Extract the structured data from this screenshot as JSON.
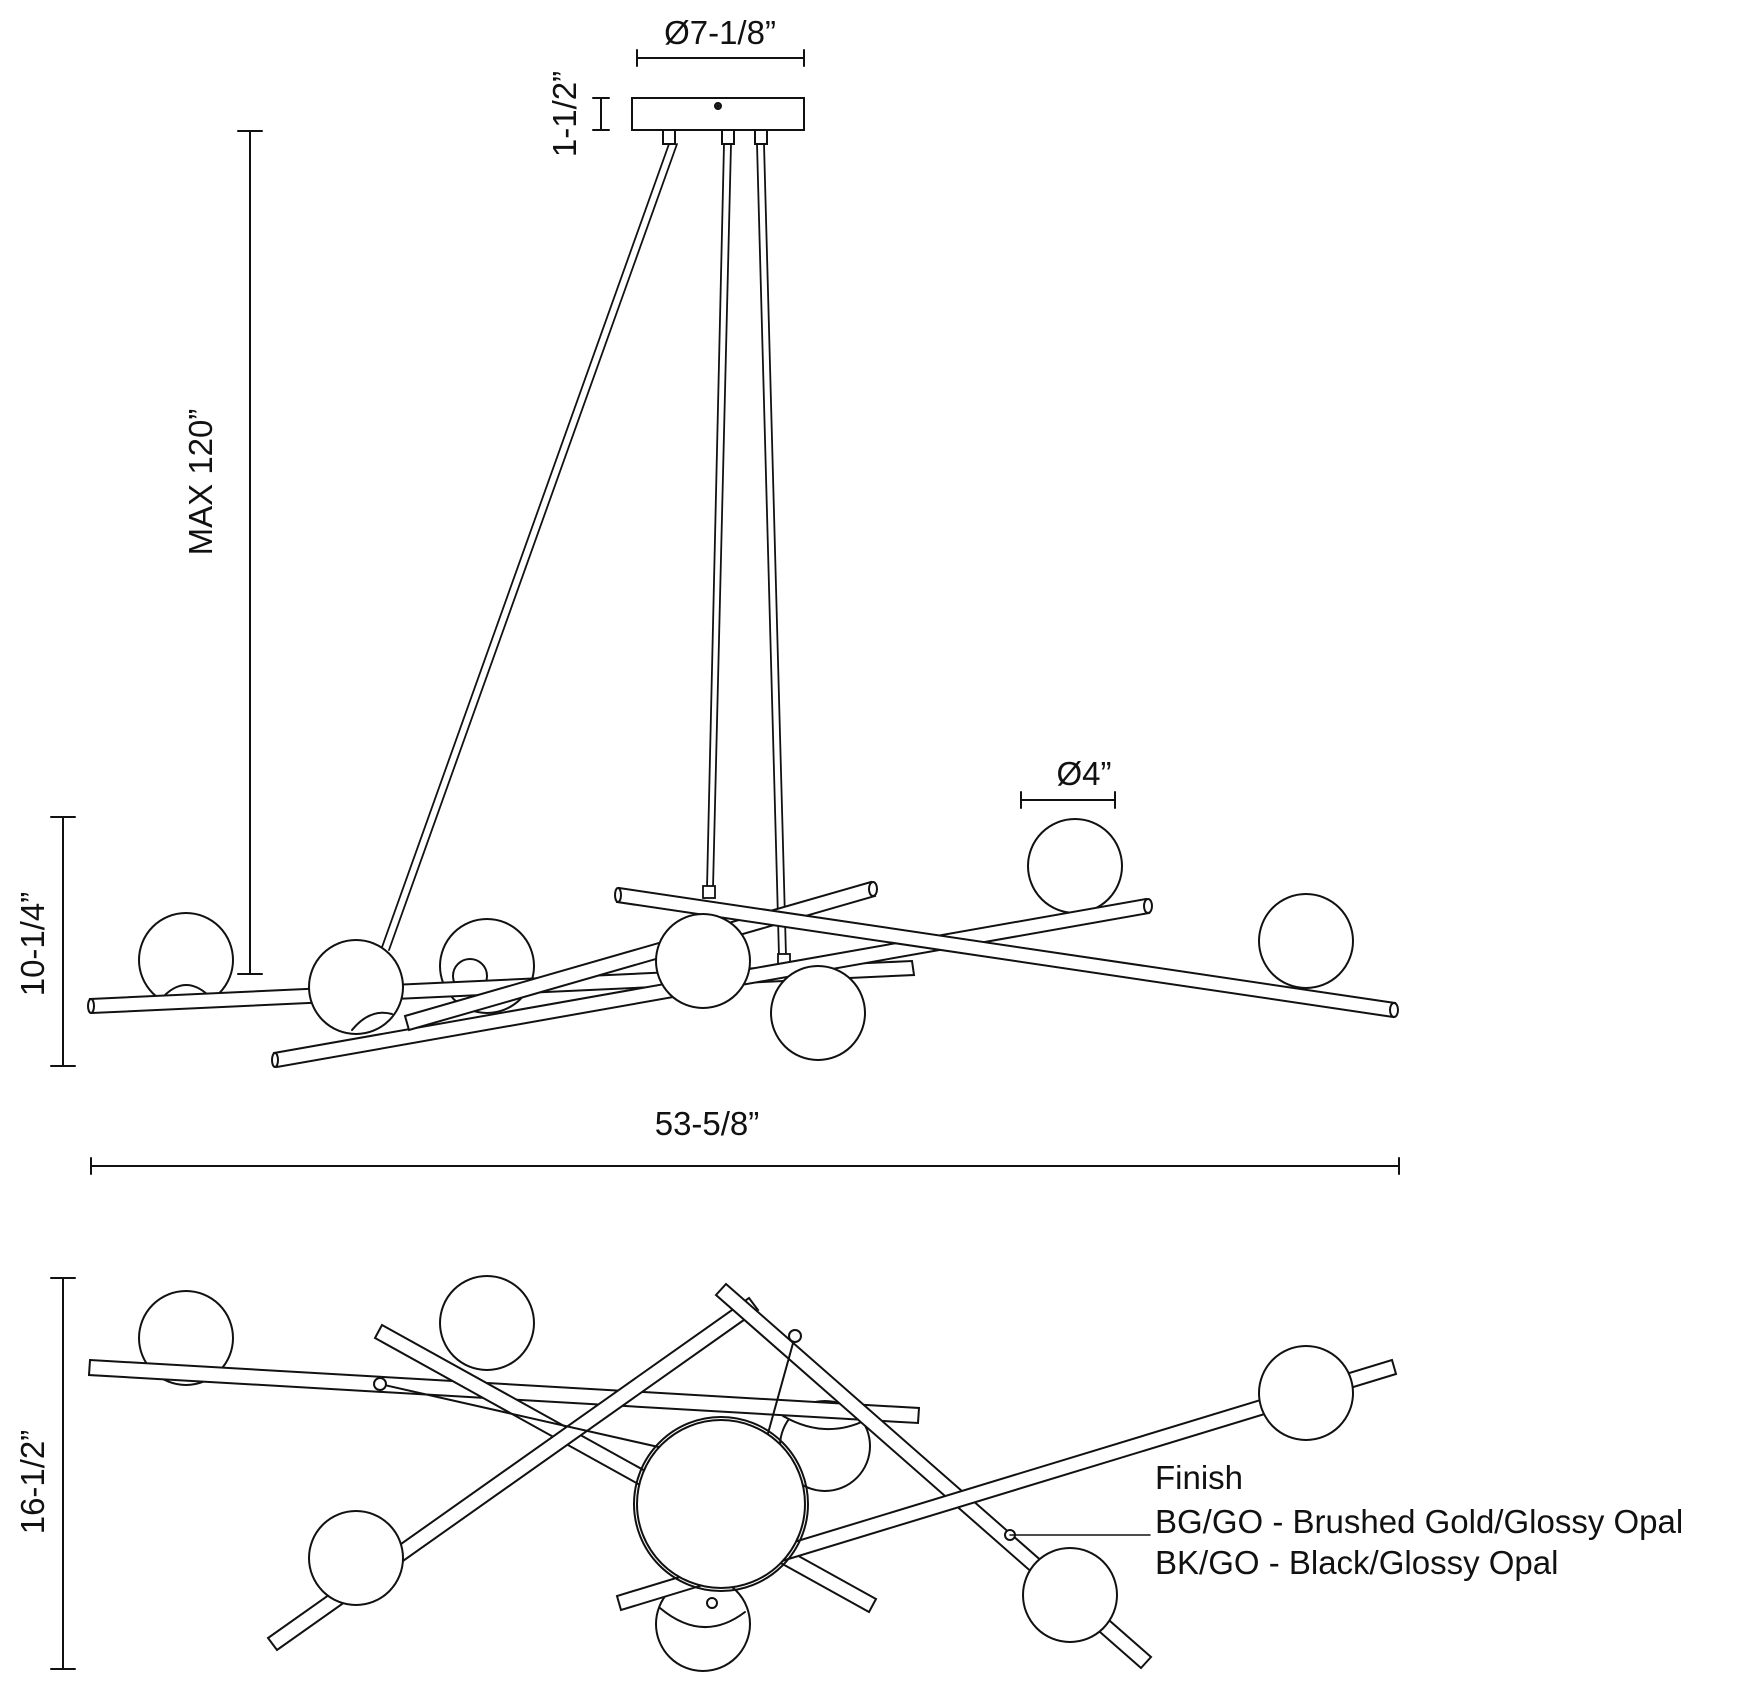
{
  "dimensions": {
    "canopy_diameter": "Ø7-1/8”",
    "canopy_height": "1-1/2”",
    "max_height": "MAX 120”",
    "fixture_height": "10-1/4”",
    "globe_diameter": "Ø4”",
    "overall_width": "53-5/8”",
    "overall_depth": "16-1/2”"
  },
  "finish": {
    "title": "Finish",
    "options": [
      "BG/GO - Brushed Gold/Glossy Opal",
      "BK/GO - Black/Glossy Opal"
    ]
  },
  "colors": {
    "line": "#111111",
    "background": "#ffffff"
  }
}
